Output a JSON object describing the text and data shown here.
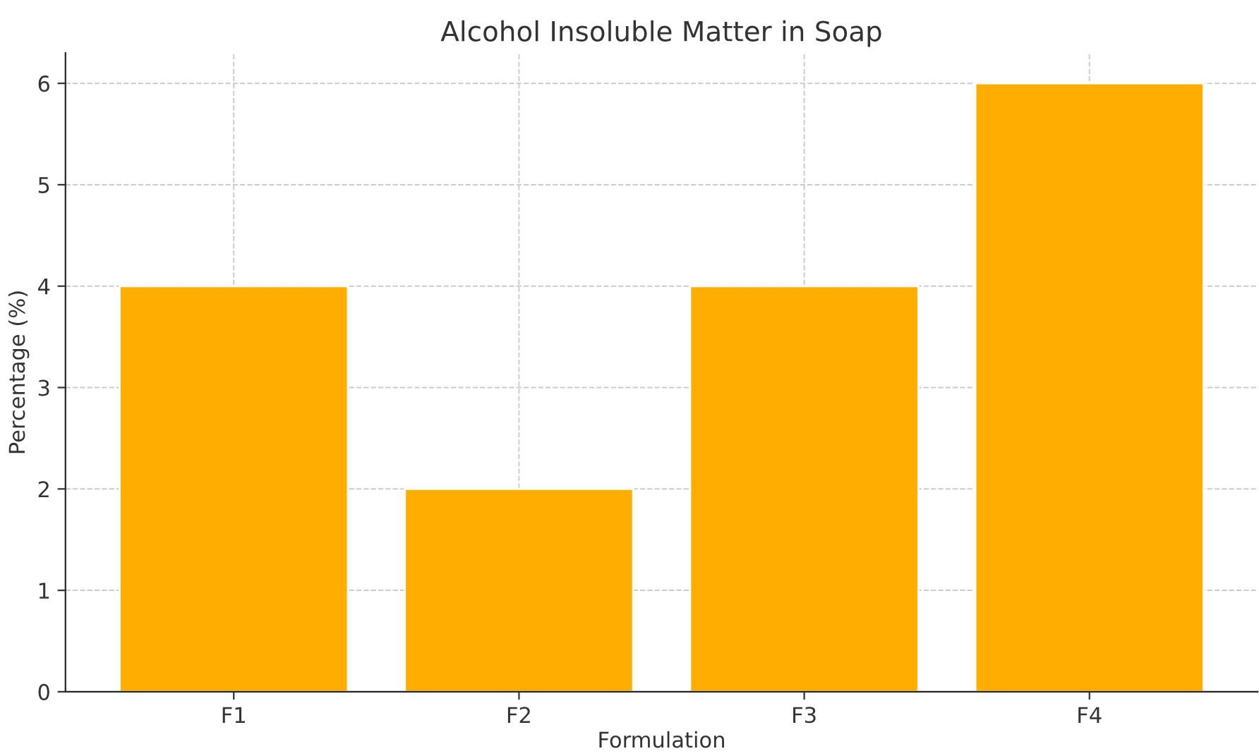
{
  "chart_data": {
    "type": "bar",
    "title": "Alcohol Insoluble Matter in Soap",
    "xlabel": "Formulation",
    "ylabel": "Percentage (%)",
    "categories": [
      "F1",
      "F2",
      "F3",
      "F4"
    ],
    "values": [
      4,
      2,
      4,
      6
    ],
    "color": "#ffae00",
    "ylim": [
      0,
      6.3
    ],
    "yticks": [
      0,
      1,
      2,
      3,
      4,
      5,
      6
    ],
    "grid": true
  }
}
